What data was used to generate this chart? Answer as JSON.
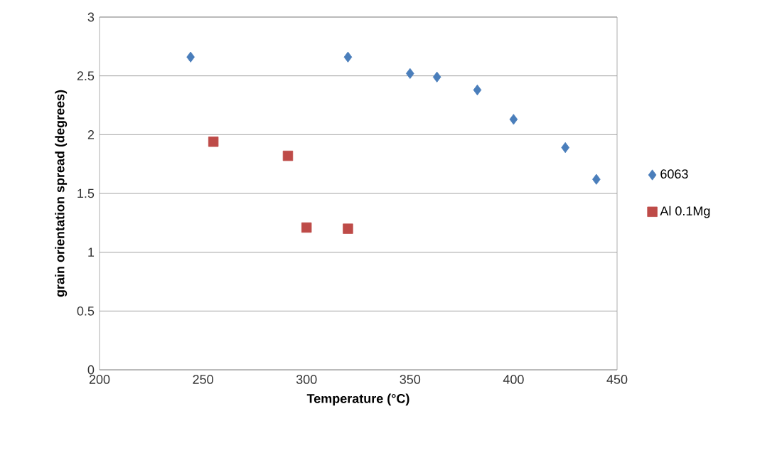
{
  "chart_data": {
    "type": "scatter",
    "xlabel": "Temperature (°C)",
    "ylabel": "grain orientation spread (degrees)",
    "xlim": [
      200,
      450
    ],
    "xticks": [
      200,
      250,
      300,
      350,
      400,
      450
    ],
    "ylim": [
      0,
      3
    ],
    "yticks": [
      0,
      0.5,
      1,
      1.5,
      2,
      2.5,
      3
    ],
    "grid": "y",
    "legend": "right",
    "series": [
      {
        "name": "6063",
        "color": "#4a7ebb",
        "marker": "diamond",
        "x": [
          244,
          320,
          350,
          363,
          382.5,
          400,
          425,
          440
        ],
        "values": [
          2.66,
          2.66,
          2.52,
          2.49,
          2.38,
          2.13,
          1.89,
          1.62
        ]
      },
      {
        "name": "Al 0.1Mg",
        "color": "#be4b48",
        "marker": "square",
        "x": [
          255,
          291,
          300,
          320
        ],
        "values": [
          1.94,
          1.82,
          1.21,
          1.2
        ]
      }
    ]
  }
}
